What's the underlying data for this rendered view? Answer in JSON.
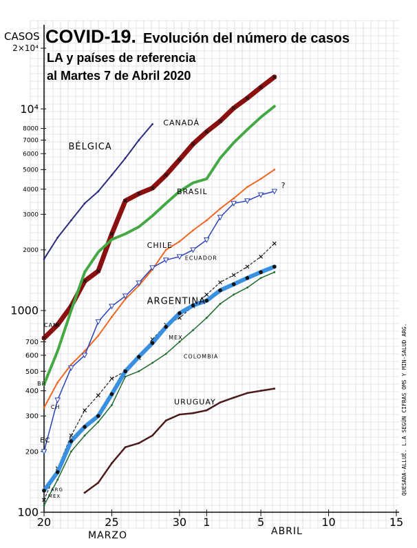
{
  "chart_data": {
    "type": "line",
    "title": "COVID-19.",
    "subtitle": "Evolución del  número de casos",
    "subtitle2": "LA y países de referencia",
    "subtitle3": "al Martes 7 de Abril 2020",
    "ylabel": "CASOS",
    "xlabel_left": "MARZO",
    "xlabel_right": "ABRIL",
    "side_note": "QUESADA-ALLUÉ. L.A SEGÚN CIFRAS OMS Y MIN-SALUD ARG.",
    "y_scale": "log",
    "ylim": [
      100,
      20000
    ],
    "xlim": [
      20,
      46
    ],
    "grid": true,
    "x_ticks": [
      {
        "x": 20,
        "label": "20",
        "size": 16
      },
      {
        "x": 25,
        "label": "25",
        "size": 16
      },
      {
        "x": 30,
        "label": "30",
        "size": 16
      },
      {
        "x": 32,
        "label": "1",
        "size": 16
      },
      {
        "x": 36,
        "label": "5",
        "size": 16
      },
      {
        "x": 41,
        "label": "10",
        "size": 16
      },
      {
        "x": 46,
        "label": "15",
        "size": 16
      }
    ],
    "y_ticks": [
      {
        "y": 20000,
        "label": "2×10⁴",
        "size": 12
      },
      {
        "y": 10000,
        "label": "10⁴",
        "size": 16
      },
      {
        "y": 8000,
        "label": "8000",
        "size": 9
      },
      {
        "y": 7000,
        "label": "7000",
        "size": 9
      },
      {
        "y": 6000,
        "label": "6000",
        "size": 9
      },
      {
        "y": 5000,
        "label": "5000",
        "size": 9
      },
      {
        "y": 4000,
        "label": "4000",
        "size": 9
      },
      {
        "y": 3000,
        "label": "3000",
        "size": 9
      },
      {
        "y": 2000,
        "label": "2000",
        "size": 9
      },
      {
        "y": 1000,
        "label": "1000",
        "size": 16
      },
      {
        "y": 700,
        "label": "700",
        "size": 10
      },
      {
        "y": 600,
        "label": "600",
        "size": 10
      },
      {
        "y": 500,
        "label": "500",
        "size": 10
      },
      {
        "y": 400,
        "label": "400",
        "size": 10
      },
      {
        "y": 300,
        "label": "300",
        "size": 10
      },
      {
        "y": 200,
        "label": "200",
        "size": 10
      },
      {
        "y": 100,
        "label": "100",
        "size": 16
      }
    ],
    "series": [
      {
        "name": "BÉLGICA",
        "color": "#2a2a7a",
        "width": 2,
        "label": {
          "text": "BÉLGICA",
          "x": 21.8,
          "y": 6300,
          "size": 13
        },
        "x": [
          20,
          21,
          22,
          23,
          24,
          25,
          26,
          27,
          28
        ],
        "y": [
          1800,
          2300,
          2800,
          3400,
          3900,
          4700,
          5700,
          7000,
          8400
        ]
      },
      {
        "name": "CANADÁ",
        "color": "#8a1010",
        "width": 7,
        "marker": "x",
        "label": {
          "text": "CANADÁ",
          "x": 28.8,
          "y": 8300,
          "size": 11
        },
        "start_label": {
          "text": "CAN",
          "x": 20.0,
          "y": 830,
          "size": 8
        },
        "x": [
          20,
          21,
          22,
          23,
          24,
          25,
          26,
          27,
          28,
          29,
          30,
          31,
          32,
          33,
          34,
          35,
          36,
          37
        ],
        "y": [
          730,
          850,
          1050,
          1400,
          1570,
          2400,
          3500,
          3800,
          4050,
          4700,
          5600,
          6700,
          7700,
          8700,
          10100,
          11300,
          12800,
          14400
        ]
      },
      {
        "name": "BRASIL",
        "color": "#44a844",
        "width": 4,
        "label": {
          "text": "BRASIL",
          "x": 29.8,
          "y": 3780,
          "size": 11
        },
        "start_label": {
          "text": "BR",
          "x": 19.5,
          "y": 425,
          "size": 8
        },
        "x": [
          20,
          21,
          22,
          23,
          24,
          25,
          26,
          27,
          28,
          29,
          30,
          31,
          32,
          33,
          34,
          35,
          36,
          37
        ],
        "y": [
          430,
          630,
          1000,
          1550,
          1950,
          2250,
          2400,
          2600,
          2950,
          3400,
          3900,
          4300,
          4500,
          5700,
          6800,
          7900,
          9100,
          10300
        ]
      },
      {
        "name": "CHILE",
        "color": "#f06620",
        "width": 2,
        "label": {
          "text": "CHILE",
          "x": 27.6,
          "y": 2050,
          "size": 11
        },
        "start_label": {
          "text": "CH",
          "x": 20.5,
          "y": 325,
          "size": 8
        },
        "x": [
          20,
          21,
          22,
          23,
          24,
          25,
          26,
          27,
          28,
          29,
          30,
          31,
          32,
          33,
          34,
          35,
          36,
          37
        ],
        "y": [
          330,
          440,
          540,
          630,
          750,
          930,
          1140,
          1330,
          1600,
          2000,
          2200,
          2500,
          2800,
          3200,
          3600,
          4100,
          4500,
          5000
        ]
      },
      {
        "name": "ECUADOR",
        "color": "#2a40b8",
        "width": 1.5,
        "marker": "tri",
        "label": {
          "text": "ECUADOR",
          "x": 30.4,
          "y": 1780,
          "size": 8
        },
        "start_label": {
          "text": "EC",
          "x": 19.7,
          "y": 222,
          "size": 10
        },
        "end_label": {
          "text": "?",
          "x": 37.5,
          "y": 4050,
          "size": 11
        },
        "x": [
          20,
          21,
          22,
          23,
          24,
          25,
          26,
          27,
          28,
          29,
          30,
          31,
          32,
          33,
          34,
          35,
          36,
          37
        ],
        "y": [
          200,
          360,
          520,
          600,
          880,
          1050,
          1180,
          1370,
          1630,
          1780,
          1850,
          2000,
          2240,
          2900,
          3400,
          3500,
          3750,
          3900
        ]
      },
      {
        "name": "MEX",
        "color": "#222222",
        "width": 1.2,
        "dashed": true,
        "marker": "x",
        "label": {
          "text": "MEX",
          "x": 29.2,
          "y": 720,
          "size": 8
        },
        "start_label": {
          "text": "MEX",
          "x": 20.3,
          "y": 118,
          "size": 7
        },
        "x": [
          20,
          21,
          22,
          23,
          24,
          25,
          26,
          27,
          28,
          29,
          30,
          31,
          32,
          33,
          34,
          35,
          36,
          37
        ],
        "y": [
          115,
          165,
          240,
          320,
          380,
          460,
          500,
          580,
          720,
          850,
          920,
          1050,
          1200,
          1380,
          1500,
          1650,
          1850,
          2150
        ]
      },
      {
        "name": "ARGENTINA",
        "color": "#3a90e0",
        "width": 6,
        "marker": "dot",
        "label": {
          "text": "ARGENTINA",
          "x": 27.6,
          "y": 1080,
          "size": 13
        },
        "start_label": {
          "text": "ARG",
          "x": 20.5,
          "y": 127,
          "size": 7
        },
        "x": [
          20,
          21,
          22,
          23,
          24,
          25,
          26,
          27,
          28,
          29,
          30,
          31,
          32,
          33,
          34,
          35,
          36,
          37
        ],
        "y": [
          128,
          158,
          225,
          265,
          300,
          385,
          500,
          590,
          690,
          830,
          970,
          1060,
          1120,
          1260,
          1350,
          1450,
          1550,
          1650
        ]
      },
      {
        "name": "COLOMBIA",
        "color": "#1e6a2a",
        "width": 1.5,
        "label": {
          "text": "COLOMBIA",
          "x": 30.3,
          "y": 580,
          "size": 8
        },
        "x": [
          20,
          21,
          22,
          23,
          24,
          25,
          26,
          27,
          28,
          29,
          30,
          31,
          32,
          33,
          34,
          35,
          36,
          37
        ],
        "y": [
          108,
          145,
          200,
          240,
          280,
          340,
          470,
          500,
          550,
          610,
          700,
          800,
          920,
          1080,
          1200,
          1300,
          1450,
          1550
        ]
      },
      {
        "name": "URUGUAY",
        "color": "#4a1a1a",
        "width": 2.5,
        "label": {
          "text": "URUGUAY",
          "x": 29.6,
          "y": 342,
          "size": 11
        },
        "x": [
          23,
          24,
          25,
          26,
          27,
          28,
          29,
          30,
          31,
          32,
          33,
          34,
          35,
          36,
          37
        ],
        "y": [
          125,
          140,
          175,
          210,
          220,
          240,
          285,
          305,
          310,
          320,
          350,
          370,
          390,
          400,
          410
        ]
      }
    ]
  }
}
